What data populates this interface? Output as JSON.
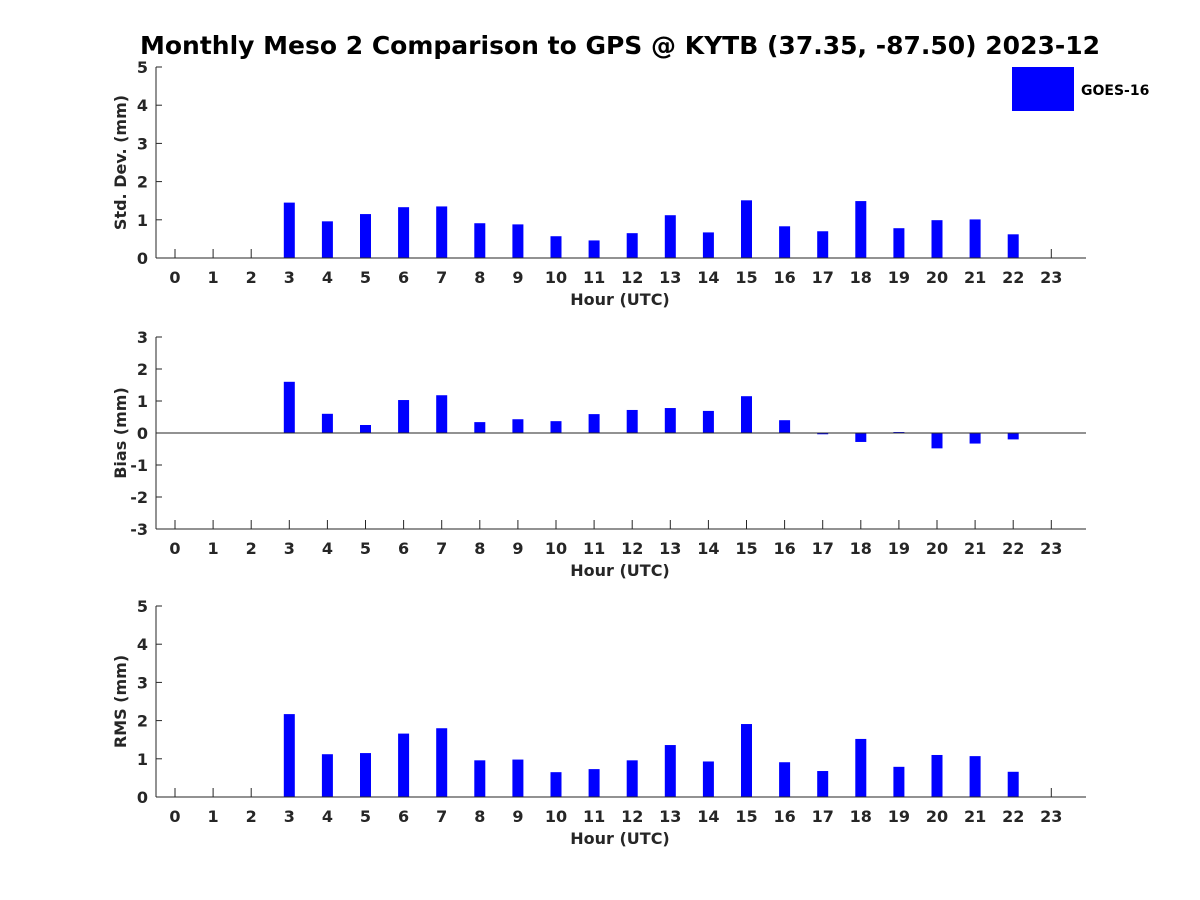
{
  "chart_data": {
    "type": "bar",
    "title": "Monthly Meso 2 Comparison to GPS @ KYTB (37.35, -87.50) 2023-12",
    "legend": {
      "entries": [
        "GOES-16"
      ],
      "placement": "top-right",
      "color": "#0000ff"
    },
    "bar_color": "#0000ff",
    "panels": [
      {
        "id": "std",
        "xlabel": "Hour (UTC)",
        "ylabel": "Std. Dev. (mm)",
        "ylim": [
          0,
          5
        ],
        "yticks": [
          "0",
          "1",
          "2",
          "3",
          "4",
          "5"
        ],
        "categories": [
          "0",
          "1",
          "2",
          "3",
          "4",
          "5",
          "6",
          "7",
          "8",
          "9",
          "10",
          "11",
          "12",
          "13",
          "14",
          "15",
          "16",
          "17",
          "18",
          "19",
          "20",
          "21",
          "22",
          "23"
        ],
        "values": [
          null,
          null,
          null,
          1.45,
          0.96,
          1.15,
          1.33,
          1.35,
          0.91,
          0.88,
          0.57,
          0.46,
          0.65,
          1.12,
          0.67,
          1.51,
          0.83,
          0.7,
          1.49,
          0.78,
          0.99,
          1.01,
          0.62,
          null
        ]
      },
      {
        "id": "bias",
        "xlabel": "Hour (UTC)",
        "ylabel": "Bias (mm)",
        "ylim": [
          -3,
          3
        ],
        "yticks": [
          "-3",
          "-2",
          "-1",
          "0",
          "1",
          "2",
          "3"
        ],
        "categories": [
          "0",
          "1",
          "2",
          "3",
          "4",
          "5",
          "6",
          "7",
          "8",
          "9",
          "10",
          "11",
          "12",
          "13",
          "14",
          "15",
          "16",
          "17",
          "18",
          "19",
          "20",
          "21",
          "22",
          "23"
        ],
        "values": [
          null,
          null,
          null,
          1.6,
          0.6,
          0.25,
          1.03,
          1.18,
          0.34,
          0.43,
          0.37,
          0.59,
          0.72,
          0.78,
          0.69,
          1.15,
          0.4,
          -0.04,
          -0.28,
          0.03,
          -0.48,
          -0.33,
          -0.2,
          null
        ]
      },
      {
        "id": "rms",
        "xlabel": "Hour (UTC)",
        "ylabel": "RMS (mm)",
        "ylim": [
          0,
          5
        ],
        "yticks": [
          "0",
          "1",
          "2",
          "3",
          "4",
          "5"
        ],
        "categories": [
          "0",
          "1",
          "2",
          "3",
          "4",
          "5",
          "6",
          "7",
          "8",
          "9",
          "10",
          "11",
          "12",
          "13",
          "14",
          "15",
          "16",
          "17",
          "18",
          "19",
          "20",
          "21",
          "22",
          "23"
        ],
        "values": [
          null,
          null,
          null,
          2.17,
          1.12,
          1.15,
          1.66,
          1.8,
          0.96,
          0.98,
          0.65,
          0.73,
          0.96,
          1.36,
          0.93,
          1.91,
          0.91,
          0.68,
          1.52,
          0.79,
          1.1,
          1.07,
          0.66,
          null
        ]
      }
    ]
  }
}
